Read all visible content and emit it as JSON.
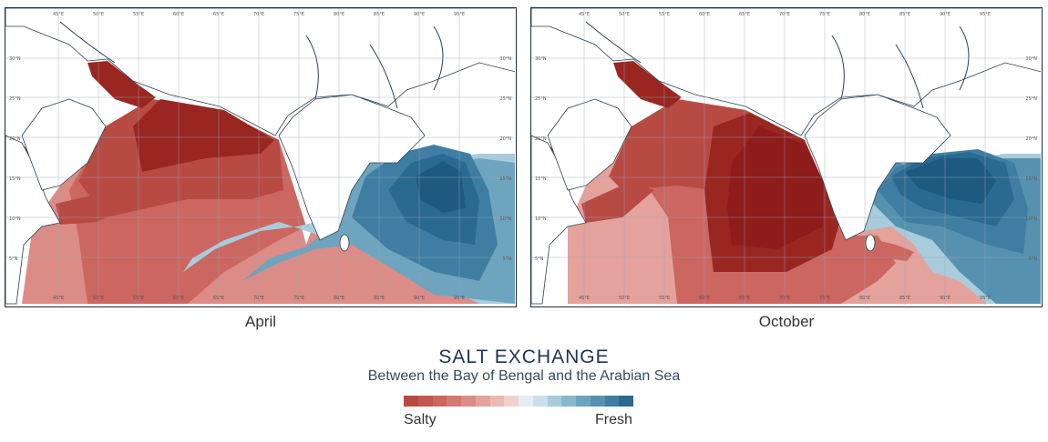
{
  "title": "SALT EXCHANGE",
  "subtitle": "Between the Bay of Bengal and the Arabian Sea",
  "maps": [
    {
      "caption": "April"
    },
    {
      "caption": "October"
    }
  ],
  "lon_ticks": [
    "45°E",
    "50°E",
    "55°E",
    "60°E",
    "65°E",
    "70°E",
    "75°E",
    "80°E",
    "85°E",
    "90°E",
    "95°E"
  ],
  "lat_ticks": [
    "30°N",
    "25°N",
    "20°N",
    "15°N",
    "10°N",
    "5°N"
  ],
  "legend": {
    "low_label": "Salty",
    "high_label": "Fresh",
    "colors": [
      "#b84a44",
      "#c25650",
      "#cc6660",
      "#d47872",
      "#dc8c86",
      "#e4a29c",
      "#ecbab4",
      "#f2d2cc",
      "#e4eef2",
      "#c8e0ea",
      "#a8ccdc",
      "#88b8cc",
      "#6ea4be",
      "#5692b0",
      "#3f7ea2",
      "#2b6a90"
    ]
  },
  "colors": {
    "salty": "#8e1c1a",
    "fresh": "#1e5a80",
    "frame": "#1d2b3a"
  }
}
